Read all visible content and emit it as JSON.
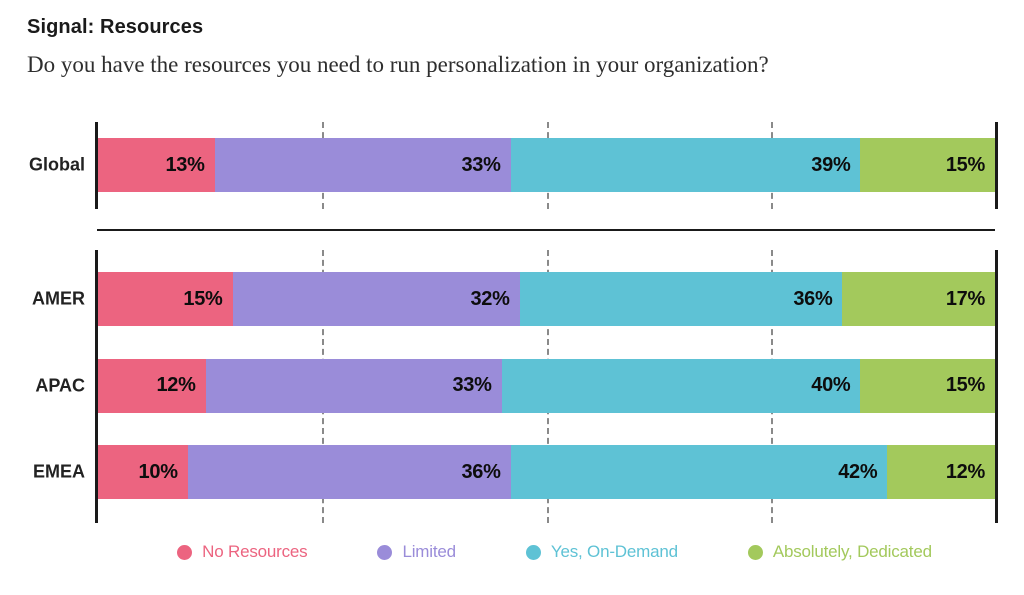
{
  "header": {
    "title": "Signal: Resources",
    "subtitle": "Do you have the resources you need to run personalization in your organization?"
  },
  "chart_data": {
    "type": "bar",
    "stacked": true,
    "orientation": "horizontal",
    "title": "Signal: Resources",
    "subtitle": "Do you have the resources you need to run personalization in your organization?",
    "categories": [
      "Global",
      "AMER",
      "APAC",
      "EMEA"
    ],
    "groups": [
      [
        "Global"
      ],
      [
        "AMER",
        "APAC",
        "EMEA"
      ]
    ],
    "series": [
      {
        "name": "No Resources",
        "color": "#ec6480",
        "values": [
          13,
          15,
          12,
          10
        ]
      },
      {
        "name": "Limited",
        "color": "#9a8cd9",
        "values": [
          33,
          32,
          33,
          36
        ]
      },
      {
        "name": "Yes, On-Demand",
        "color": "#5ec2d5",
        "values": [
          39,
          36,
          40,
          42
        ]
      },
      {
        "name": "Absolutely, Dedicated",
        "color": "#a3c95c",
        "values": [
          15,
          17,
          15,
          12
        ]
      }
    ],
    "xlim": [
      0,
      100
    ],
    "gridlines": [
      25,
      50,
      75
    ],
    "grid": "dashed-vertical",
    "legend_position": "bottom",
    "value_suffix": "%",
    "axis_color": "#1a1a1a",
    "gridline_color": "#8a8a8a"
  }
}
